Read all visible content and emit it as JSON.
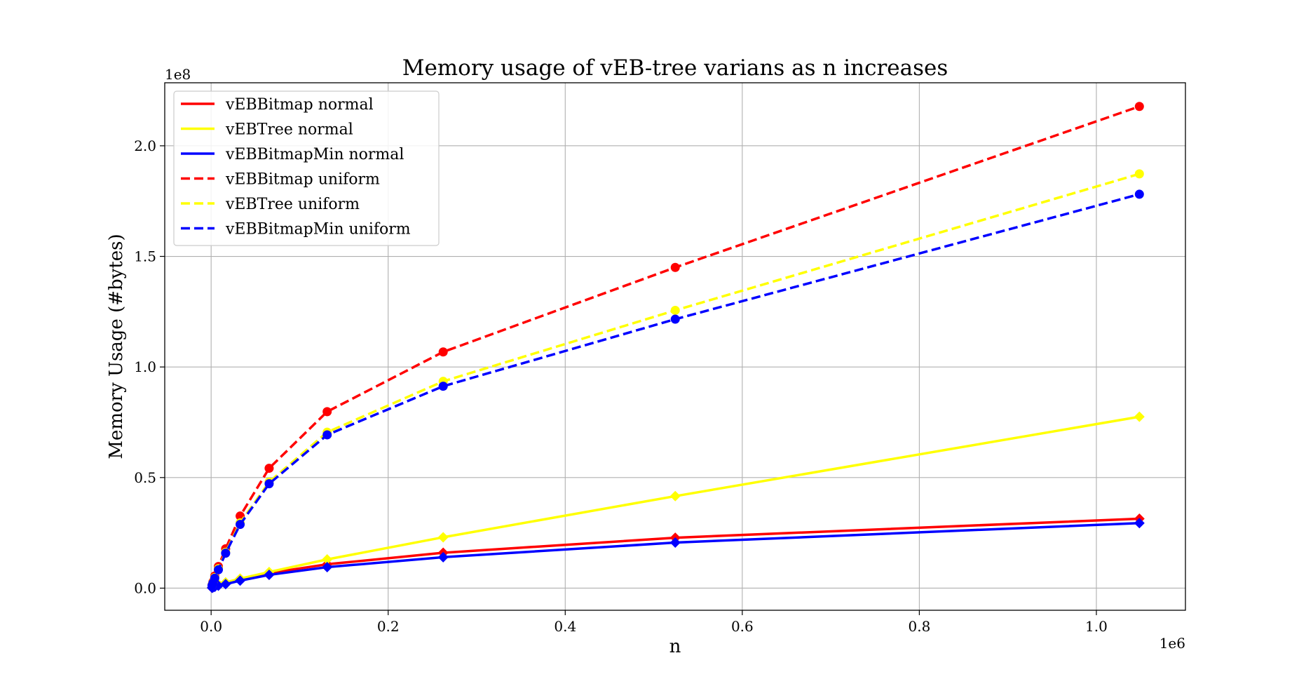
{
  "chart_data": {
    "type": "line",
    "title": "Memory usage of vEB-tree varians as n increases",
    "xlabel": "n",
    "ylabel": "Memory Usage (#bytes)",
    "x_exponent_label": "1e6",
    "y_exponent_label": "1e8",
    "x_scale": 1000000,
    "y_scale": 100000000,
    "xlim": [
      -0.0524,
      1.1006
    ],
    "ylim": [
      -0.1,
      2.285
    ],
    "x_ticks": [
      0.0,
      0.2,
      0.4,
      0.6,
      0.8,
      1.0
    ],
    "x_tick_labels": [
      "0.0",
      "0.2",
      "0.4",
      "0.6",
      "0.8",
      "1.0"
    ],
    "y_ticks": [
      0.0,
      0.5,
      1.0,
      1.5,
      2.0
    ],
    "y_tick_labels": [
      "0.0",
      "0.5",
      "1.0",
      "1.5",
      "2.0"
    ],
    "grid": true,
    "legend_position": "upper-left",
    "x": [
      1024,
      2048,
      4096,
      8192,
      16384,
      32768,
      65536,
      131072,
      262144,
      524288,
      1048576
    ],
    "series": [
      {
        "name": "vEBBitmap normal",
        "color": "#ff0000",
        "line_style": "solid",
        "marker": "diamond",
        "values": [
          200000,
          350000,
          700000,
          1200000,
          2000000,
          3700000,
          6800000,
          10800000,
          16000000,
          22800000,
          31400000
        ]
      },
      {
        "name": "vEBTree normal",
        "color": "#ffff00",
        "line_style": "solid",
        "marker": "diamond",
        "values": [
          250000,
          500000,
          1000000,
          1800000,
          2600000,
          4300000,
          7300000,
          13000000,
          23000000,
          41600000,
          77500000
        ]
      },
      {
        "name": "vEBBitmapMin normal",
        "color": "#0000ff",
        "line_style": "solid",
        "marker": "diamond",
        "values": [
          150000,
          300000,
          600000,
          1100000,
          1800000,
          3400000,
          6000000,
          9500000,
          14000000,
          20600000,
          29400000
        ]
      },
      {
        "name": "vEBBitmap uniform",
        "color": "#ff0000",
        "line_style": "dashed",
        "marker": "circle",
        "values": [
          1400000,
          2800000,
          5500000,
          9800000,
          17800000,
          32600000,
          54200000,
          79800000,
          106800000,
          145000000,
          217800000
        ]
      },
      {
        "name": "vEBTree uniform",
        "color": "#ffff00",
        "line_style": "dashed",
        "marker": "circle",
        "values": [
          1300000,
          2500000,
          4800000,
          8800000,
          16200000,
          29500000,
          48000000,
          70500000,
          93500000,
          125600000,
          187300000
        ]
      },
      {
        "name": "vEBBitmapMin uniform",
        "color": "#0000ff",
        "line_style": "dashed",
        "marker": "circle",
        "values": [
          1200000,
          2300000,
          4500000,
          8300000,
          15800000,
          28800000,
          47200000,
          69300000,
          91300000,
          121600000,
          178100000
        ]
      }
    ]
  }
}
